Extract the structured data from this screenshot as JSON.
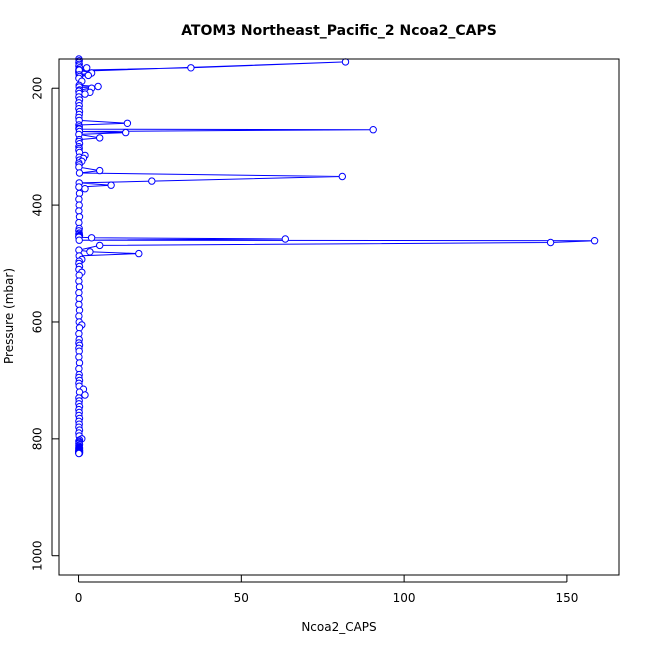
{
  "chart_data": {
    "type": "line",
    "title": "ATOM3 Northeast_Pacific_2 Ncoa2_CAPS",
    "xlabel": "Ncoa2_CAPS",
    "ylabel": "Pressure (mbar)",
    "xlim": [
      -6,
      166
    ],
    "ylim": [
      1033,
      150
    ],
    "y_reversed": true,
    "x_ticks": [
      0,
      50,
      100,
      150
    ],
    "y_ticks": [
      200,
      400,
      600,
      800,
      1000
    ],
    "grid": false,
    "legend": "none",
    "series": [
      {
        "color": "#0000ff",
        "marker": "open-circle",
        "x": [
          0.1,
          0.2,
          0.1,
          0.2,
          0.1,
          0.3,
          0.1,
          0.2,
          0.1,
          0.1,
          2.5,
          0.1,
          82,
          34.5,
          0.2,
          4,
          0.2,
          3,
          0.3,
          0.1,
          1,
          0.2,
          6,
          0.2,
          4,
          0.3,
          0.1,
          3.5,
          0.2,
          2,
          0.1,
          0.3,
          0.1,
          0.2,
          0.1,
          0.3,
          0.2,
          0.1,
          0.2,
          15,
          0.1,
          0.2,
          0.1,
          0.2,
          90.5,
          0.3,
          14.5,
          0.1,
          6.5,
          0.2,
          0.1,
          0.3,
          0.1,
          0.2,
          0.1,
          0.3,
          2,
          0.2,
          1.5,
          0.3,
          1,
          0.1,
          0.2,
          0.1,
          6.5,
          0.3,
          81,
          22.5,
          0.2,
          10,
          0.1,
          2,
          0.3,
          0.1,
          0.2,
          0.1,
          0.3,
          0.1,
          0.2,
          0.1,
          0.2,
          0.1,
          0.3,
          0.1,
          0.2,
          0.1,
          4,
          63.5,
          0.2,
          158.5,
          145,
          6.5,
          0.1,
          3.5,
          18.5,
          0.2,
          1,
          0.2,
          0.1,
          0.3,
          0.1,
          1,
          0.2,
          0.1,
          0.3,
          0.1,
          0.2,
          0.1,
          0.3,
          0.1,
          0.2,
          1,
          0.3,
          0.1,
          0.2,
          0.1,
          0.3,
          0.1,
          0.2,
          0.1,
          0.3,
          0.1,
          0.2,
          0.1,
          0.3,
          0.1,
          0.2,
          1.5,
          0.3,
          2,
          0.1,
          0.2,
          0.1,
          0.3,
          0.1,
          0.2,
          0.1,
          0.3,
          0.1,
          0.2,
          0.1,
          0.3,
          0.1,
          0.2,
          1,
          0.3,
          0.1,
          0.2,
          0.1,
          0.3,
          0.1,
          0.2,
          0.1,
          0.3,
          0.1,
          0.2,
          0.1,
          0.3,
          0.1,
          0.2,
          0.1,
          0.3,
          0.1,
          0.2,
          0.1,
          0.3,
          0.1,
          0.2,
          0.1,
          0.3,
          0.1,
          0.2,
          0.1,
          0.3,
          0.1,
          0.2,
          0.1
        ],
        "y": [
          150,
          153,
          156,
          159,
          162,
          165,
          168,
          170,
          172,
          174,
          165,
          171,
          155,
          165,
          169,
          174,
          177,
          178,
          180,
          183,
          188,
          195,
          197,
          198,
          200,
          203,
          205,
          207,
          209,
          210,
          215,
          220,
          225,
          230,
          235,
          240,
          245,
          250,
          255,
          260,
          263,
          266,
          269,
          270,
          271,
          274,
          276,
          279,
          285,
          288,
          291,
          295,
          300,
          303,
          306,
          310,
          315,
          318,
          320,
          323,
          325,
          328,
          331,
          335,
          341,
          345,
          351,
          359,
          362,
          366,
          369,
          372,
          380,
          390,
          400,
          410,
          420,
          430,
          440,
          444,
          448,
          450,
          452,
          453,
          454,
          455,
          456,
          458,
          460,
          461,
          464,
          469,
          477,
          480,
          483,
          487,
          493,
          496,
          500,
          505,
          510,
          515,
          520,
          530,
          540,
          550,
          560,
          570,
          580,
          590,
          600,
          605,
          610,
          620,
          630,
          636,
          640,
          645,
          650,
          660,
          670,
          680,
          690,
          695,
          700,
          705,
          710,
          715,
          720,
          725,
          730,
          735,
          740,
          745,
          750,
          755,
          760,
          765,
          770,
          775,
          780,
          785,
          790,
          795,
          800,
          802,
          804,
          806,
          808,
          810,
          812,
          814,
          815,
          816,
          817,
          818,
          819,
          819.5,
          820,
          820.5,
          821,
          821.3,
          821.6,
          822,
          822.3,
          822.6,
          823,
          823.2,
          823.4,
          823.6,
          823.8,
          824,
          824.2,
          824.4,
          824.6,
          824.8,
          825
        ]
      }
    ]
  }
}
